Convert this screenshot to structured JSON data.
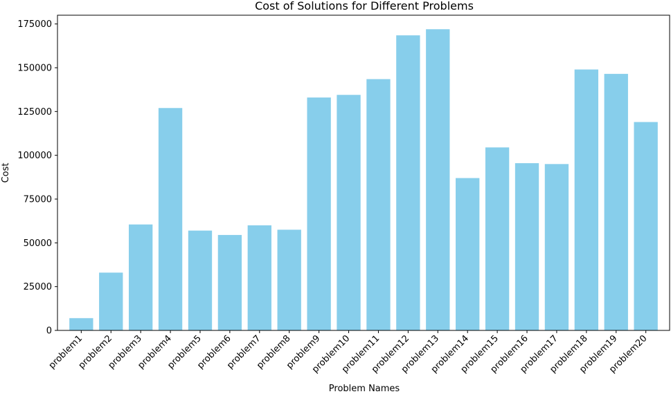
{
  "chart_data": {
    "type": "bar",
    "title": "Cost of Solutions for Different Problems",
    "xlabel": "Problem Names",
    "ylabel": "Cost",
    "categories": [
      "problem1",
      "problem2",
      "problem3",
      "problem4",
      "problem5",
      "problem6",
      "problem7",
      "problem8",
      "problem9",
      "problem10",
      "problem11",
      "problem12",
      "problem13",
      "problem14",
      "problem15",
      "problem16",
      "problem17",
      "problem18",
      "problem19",
      "problem20"
    ],
    "values": [
      7000,
      33000,
      60500,
      127000,
      57000,
      54500,
      60000,
      57500,
      133000,
      134500,
      143500,
      168500,
      172000,
      87000,
      104500,
      95500,
      95000,
      149000,
      146500,
      119000
    ],
    "ylim": [
      0,
      180000
    ],
    "yticks": [
      0,
      25000,
      50000,
      75000,
      100000,
      125000,
      150000,
      175000
    ],
    "ytick_labels": [
      "0",
      "25000",
      "50000",
      "75000",
      "100000",
      "125000",
      "150000",
      "175000"
    ],
    "bar_color": "#87ceeb",
    "grid": false,
    "legend": "none"
  }
}
